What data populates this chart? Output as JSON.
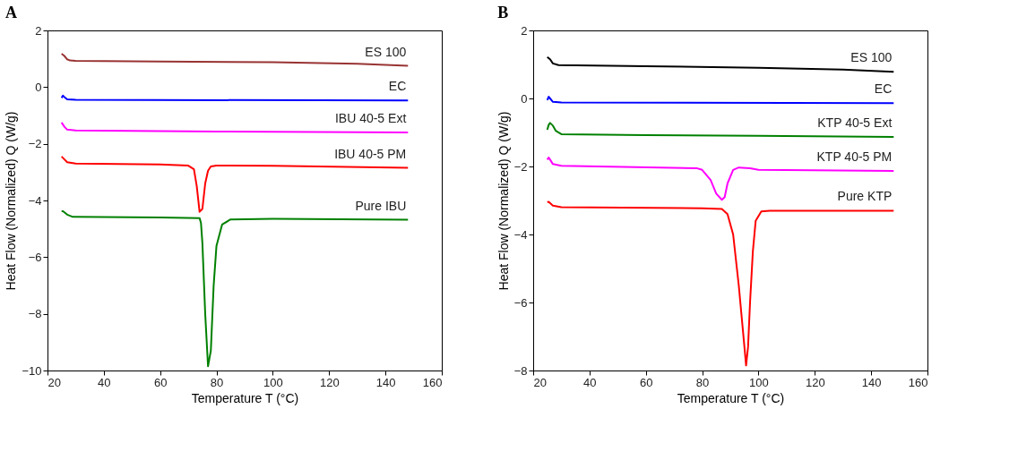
{
  "chart_data": [
    {
      "type": "line",
      "title": "A",
      "xlabel": "Temperature T (°C)",
      "ylabel": "Heat Flow (Normalized) Q (W/g)",
      "xlim": [
        20,
        160
      ],
      "xticks": [
        20,
        40,
        60,
        80,
        100,
        120,
        140,
        160
      ],
      "ylim": [
        -10,
        2
      ],
      "yticks": [
        -10,
        -8,
        -6,
        -4,
        -2,
        0,
        2
      ],
      "grid": false,
      "legend": false,
      "series": [
        {
          "name": "ES 100",
          "color": "#993333",
          "x": [
            25,
            26,
            27,
            28,
            30,
            60,
            100,
            130,
            148
          ],
          "values": [
            1.18,
            1.1,
            0.98,
            0.94,
            0.93,
            0.9,
            0.88,
            0.82,
            0.75
          ]
        },
        {
          "name": "EC",
          "color": "#0000ff",
          "x": [
            25,
            25.5,
            26,
            27,
            30,
            148
          ],
          "values": [
            -0.38,
            -0.3,
            -0.35,
            -0.43,
            -0.45,
            -0.47
          ]
        },
        {
          "name": "IBU 40-5 Ext",
          "color": "#ff00ff",
          "x": [
            25,
            26,
            27,
            30,
            80,
            148
          ],
          "values": [
            -1.25,
            -1.4,
            -1.5,
            -1.53,
            -1.57,
            -1.6
          ]
        },
        {
          "name": "IBU 40-5 PM",
          "color": "#ff0000",
          "x": [
            25,
            26,
            27,
            30,
            60,
            70,
            72,
            73,
            74,
            75,
            76,
            77,
            78,
            80,
            100,
            148
          ],
          "values": [
            -2.45,
            -2.55,
            -2.65,
            -2.7,
            -2.73,
            -2.77,
            -2.9,
            -3.5,
            -4.4,
            -4.3,
            -3.4,
            -2.95,
            -2.8,
            -2.77,
            -2.78,
            -2.85
          ]
        },
        {
          "name": "Pure IBU",
          "color": "#008000",
          "x": [
            25,
            25.5,
            27,
            29,
            60,
            74,
            74.5,
            75,
            76,
            77,
            78,
            79,
            80,
            82,
            85,
            100,
            148
          ],
          "values": [
            -4.38,
            -4.38,
            -4.5,
            -4.58,
            -4.6,
            -4.62,
            -4.8,
            -5.5,
            -8,
            -9.85,
            -9.3,
            -7,
            -5.6,
            -4.85,
            -4.67,
            -4.65,
            -4.68
          ]
        }
      ]
    },
    {
      "type": "line",
      "title": "B",
      "xlabel": "Temperature T (°C)",
      "ylabel": "Heat Flow (Normalized) Q (W/g)",
      "xlim": [
        20,
        160
      ],
      "xticks": [
        20,
        40,
        60,
        80,
        100,
        120,
        140,
        160
      ],
      "ylim": [
        -8,
        2
      ],
      "yticks": [
        -8,
        -6,
        -4,
        -2,
        0,
        2
      ],
      "grid": false,
      "legend": false,
      "series": [
        {
          "name": "ES 100",
          "color": "#000000",
          "x": [
            25,
            26,
            27,
            29,
            60,
            100,
            130,
            148
          ],
          "values": [
            1.22,
            1.15,
            1.03,
            0.98,
            0.95,
            0.9,
            0.85,
            0.78
          ]
        },
        {
          "name": "EC",
          "color": "#0000ff",
          "x": [
            25,
            25.5,
            26,
            27,
            30,
            148
          ],
          "values": [
            -0.05,
            0.05,
            0.0,
            -0.1,
            -0.12,
            -0.14
          ]
        },
        {
          "name": "KTP 40-5 Ext",
          "color": "#008000",
          "x": [
            25,
            25.5,
            26,
            27,
            28,
            30,
            60,
            100,
            148
          ],
          "values": [
            -0.92,
            -0.78,
            -0.72,
            -0.8,
            -0.95,
            -1.05,
            -1.08,
            -1.1,
            -1.13
          ]
        },
        {
          "name": "KTP 40-5 PM",
          "color": "#ff00ff",
          "x": [
            25,
            25.5,
            26,
            27,
            30,
            78,
            80,
            83,
            85,
            87,
            88,
            89,
            91,
            93,
            97,
            100,
            148
          ],
          "values": [
            -1.8,
            -1.74,
            -1.8,
            -1.93,
            -1.98,
            -2.05,
            -2.1,
            -2.4,
            -2.8,
            -2.98,
            -2.9,
            -2.5,
            -2.1,
            -2.03,
            -2.05,
            -2.1,
            -2.13
          ]
        },
        {
          "name": "Pure KTP",
          "color": "#ff0000",
          "x": [
            25,
            25.5,
            27,
            30,
            80,
            87,
            89,
            91,
            93,
            95,
            95.6,
            96.3,
            97,
            98,
            99,
            101,
            104,
            148
          ],
          "values": [
            -3.05,
            -3.04,
            -3.15,
            -3.2,
            -3.23,
            -3.25,
            -3.4,
            -4,
            -5.5,
            -7.3,
            -7.85,
            -7.3,
            -6,
            -4.5,
            -3.6,
            -3.32,
            -3.3,
            -3.3
          ]
        }
      ]
    }
  ]
}
